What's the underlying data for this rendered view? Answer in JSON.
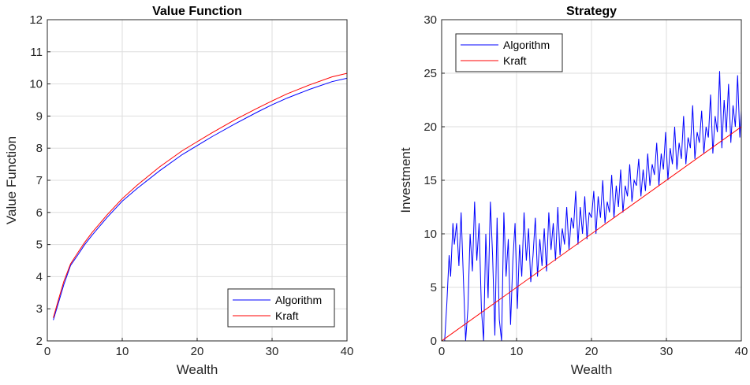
{
  "chart_data": [
    {
      "type": "line",
      "title": "Value Function",
      "xlabel": "Wealth",
      "ylabel": "Value Function",
      "xlim": [
        0,
        40
      ],
      "ylim": [
        2,
        12
      ],
      "xticks": [
        0,
        10,
        20,
        30,
        40
      ],
      "yticks": [
        2,
        3,
        4,
        5,
        6,
        7,
        8,
        9,
        10,
        11,
        12
      ],
      "grid": true,
      "legend_position": "bottom-right",
      "series": [
        {
          "name": "Algorithm",
          "color": "#0000ff",
          "x": [
            0.8,
            1.5,
            2.2,
            3.1,
            4,
            5,
            6,
            8,
            10,
            12,
            15,
            18,
            20,
            22,
            25,
            28,
            30,
            32,
            35,
            38,
            40
          ],
          "y": [
            2.65,
            3.2,
            3.75,
            4.35,
            4.65,
            5.0,
            5.3,
            5.85,
            6.35,
            6.75,
            7.3,
            7.8,
            8.08,
            8.36,
            8.75,
            9.12,
            9.35,
            9.56,
            9.83,
            10.07,
            10.18
          ]
        },
        {
          "name": "Kraft",
          "color": "#ff0000",
          "x": [
            0.8,
            1.5,
            2.2,
            3.1,
            4,
            5,
            6,
            8,
            10,
            12,
            15,
            18,
            20,
            22,
            25,
            28,
            30,
            32,
            35,
            38,
            40
          ],
          "y": [
            2.72,
            3.3,
            3.85,
            4.4,
            4.72,
            5.07,
            5.38,
            5.93,
            6.43,
            6.85,
            7.42,
            7.92,
            8.2,
            8.48,
            8.88,
            9.24,
            9.47,
            9.69,
            9.97,
            10.22,
            10.33
          ]
        }
      ]
    },
    {
      "type": "line",
      "title": "Strategy",
      "xlabel": "Wealth",
      "ylabel": "Investment",
      "xlim": [
        0,
        40
      ],
      "ylim": [
        0,
        30
      ],
      "xticks": [
        0,
        10,
        20,
        30,
        40
      ],
      "yticks": [
        0,
        5,
        10,
        15,
        20,
        25,
        30
      ],
      "grid": true,
      "legend_position": "top-left",
      "series": [
        {
          "name": "Algorithm",
          "color": "#0000ff",
          "x": [
            0.4,
            0.7,
            1.0,
            1.2,
            1.5,
            1.7,
            2.0,
            2.3,
            2.6,
            2.9,
            3.2,
            3.5,
            3.8,
            4.1,
            4.4,
            4.7,
            5.0,
            5.3,
            5.6,
            5.9,
            6.2,
            6.5,
            6.8,
            7.1,
            7.4,
            7.7,
            8.0,
            8.3,
            8.6,
            8.9,
            9.2,
            9.5,
            9.8,
            10.1,
            10.4,
            10.7,
            11.0,
            11.3,
            11.6,
            11.9,
            12.2,
            12.5,
            12.8,
            13.1,
            13.4,
            13.7,
            14.0,
            14.3,
            14.6,
            14.9,
            15.2,
            15.5,
            15.8,
            16.1,
            16.4,
            16.7,
            17.0,
            17.3,
            17.6,
            17.9,
            18.2,
            18.5,
            18.8,
            19.1,
            19.4,
            19.7,
            20.0,
            20.3,
            20.6,
            20.9,
            21.2,
            21.5,
            21.8,
            22.1,
            22.4,
            22.7,
            23.0,
            23.3,
            23.6,
            23.9,
            24.2,
            24.5,
            24.8,
            25.1,
            25.4,
            25.7,
            26.0,
            26.3,
            26.6,
            26.9,
            27.2,
            27.5,
            27.8,
            28.1,
            28.4,
            28.7,
            29.0,
            29.3,
            29.6,
            29.9,
            30.2,
            30.5,
            30.8,
            31.1,
            31.4,
            31.7,
            32.0,
            32.3,
            32.6,
            32.9,
            33.2,
            33.5,
            33.8,
            34.1,
            34.4,
            34.7,
            35.0,
            35.3,
            35.6,
            35.9,
            36.2,
            36.5,
            36.8,
            37.1,
            37.4,
            37.7,
            38.0,
            38.3,
            38.6,
            38.9,
            39.2,
            39.5,
            39.8,
            40.0
          ],
          "y": [
            0.0,
            3.5,
            8.0,
            6.0,
            11.0,
            9.0,
            11.0,
            7.0,
            12.0,
            6.0,
            0.0,
            3.0,
            10.0,
            6.5,
            13.0,
            7.5,
            11.0,
            3.0,
            0.0,
            10.0,
            4.0,
            13.0,
            8.0,
            0.5,
            11.5,
            2.0,
            0.0,
            12.0,
            6.0,
            9.5,
            1.5,
            7.5,
            11.0,
            3.0,
            9.0,
            6.0,
            12.0,
            7.5,
            10.5,
            5.5,
            8.0,
            11.5,
            6.0,
            9.5,
            7.0,
            10.5,
            6.5,
            12.0,
            8.5,
            11.0,
            7.5,
            12.5,
            8.0,
            10.5,
            9.0,
            12.5,
            8.5,
            11.5,
            10.5,
            14.0,
            9.0,
            12.5,
            10.0,
            13.5,
            9.5,
            12.0,
            11.5,
            14.0,
            10.0,
            13.5,
            11.5,
            15.0,
            11.0,
            13.0,
            12.0,
            15.5,
            11.5,
            14.5,
            12.5,
            16.0,
            12.0,
            14.5,
            13.5,
            16.5,
            13.0,
            15.0,
            14.5,
            17.0,
            13.5,
            16.0,
            14.0,
            17.5,
            14.5,
            16.5,
            15.5,
            18.5,
            14.5,
            17.5,
            16.0,
            19.5,
            15.0,
            18.0,
            16.5,
            20.0,
            16.0,
            18.5,
            17.0,
            21.0,
            16.5,
            19.0,
            18.0,
            22.0,
            17.0,
            19.5,
            18.5,
            21.5,
            17.5,
            20.0,
            19.0,
            23.0,
            17.5,
            21.0,
            19.5,
            25.2,
            18.0,
            22.5,
            19.5,
            24.0,
            18.5,
            22.0,
            20.0,
            24.8,
            19.0,
            21.5
          ]
        },
        {
          "name": "Kraft",
          "color": "#ff0000",
          "x": [
            0,
            40
          ],
          "y": [
            0,
            20
          ]
        }
      ]
    }
  ]
}
